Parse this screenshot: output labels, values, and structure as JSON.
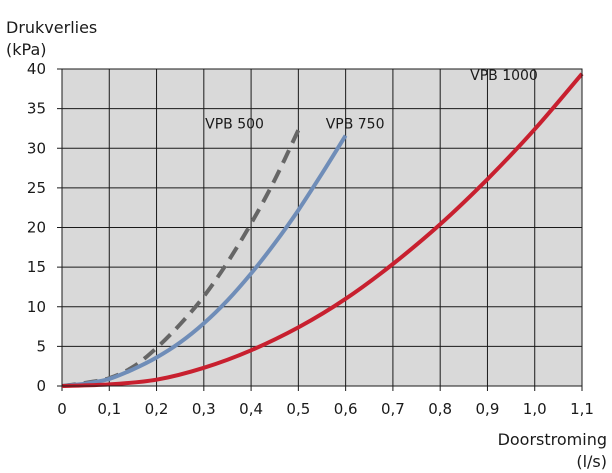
{
  "chart_data": {
    "type": "line",
    "ylabel_line1": "Drukverlies",
    "ylabel_line2": "(kPa)",
    "xlabel_line1": "Doorstroming",
    "xlabel_line2": "(l/s)",
    "xlim": [
      0,
      1.1
    ],
    "ylim": [
      0,
      40
    ],
    "x_ticks": [
      0,
      0.1,
      0.2,
      0.3,
      0.4,
      0.5,
      0.6,
      0.7,
      0.8,
      0.9,
      1.0,
      1.1
    ],
    "x_tick_labels": [
      "0",
      "0,1",
      "0,2",
      "0,3",
      "0,4",
      "0,5",
      "0,6",
      "0,7",
      "0,8",
      "0,9",
      "1,0",
      "1,1"
    ],
    "y_ticks": [
      0,
      5,
      10,
      15,
      20,
      25,
      30,
      35,
      40
    ],
    "y_tick_labels": [
      "0",
      "5",
      "10",
      "15",
      "20",
      "25",
      "30",
      "35",
      "40"
    ],
    "grid": true,
    "plot_background": "#d9d9d9",
    "grid_color": "#1a1a1a",
    "series": [
      {
        "name": "VPB 500",
        "color": "#666666",
        "dashed": true,
        "x": [
          0,
          0.05,
          0.1,
          0.15,
          0.2,
          0.25,
          0.3,
          0.35,
          0.4,
          0.45,
          0.5
        ],
        "y": [
          0,
          0.4,
          1.0,
          2.4,
          4.8,
          7.8,
          11.3,
          15.6,
          20.5,
          26.0,
          32.3
        ]
      },
      {
        "name": "VPB 750",
        "color": "#6f8db8",
        "dashed": false,
        "x": [
          0,
          0.05,
          0.1,
          0.15,
          0.2,
          0.25,
          0.3,
          0.35,
          0.4,
          0.45,
          0.5,
          0.55,
          0.6
        ],
        "y": [
          0,
          0.3,
          0.9,
          2.1,
          3.6,
          5.5,
          7.9,
          10.8,
          14.2,
          18.0,
          22.2,
          26.8,
          31.6
        ]
      },
      {
        "name": "VPB 1000",
        "color": "#c8202f",
        "dashed": false,
        "x": [
          0,
          0.1,
          0.2,
          0.3,
          0.4,
          0.5,
          0.6,
          0.7,
          0.8,
          0.9,
          1.0,
          1.1
        ],
        "y": [
          0,
          0.2,
          0.8,
          2.3,
          4.5,
          7.4,
          11.0,
          15.4,
          20.4,
          26.1,
          32.4,
          39.4
        ]
      }
    ],
    "annotations": [
      {
        "text": "VPB 500",
        "x": 0.365,
        "y": 32.5
      },
      {
        "text": "VPB 750",
        "x": 0.62,
        "y": 32.5
      },
      {
        "text": "VPB 1000",
        "x": 0.935,
        "y": 38.6
      }
    ]
  }
}
